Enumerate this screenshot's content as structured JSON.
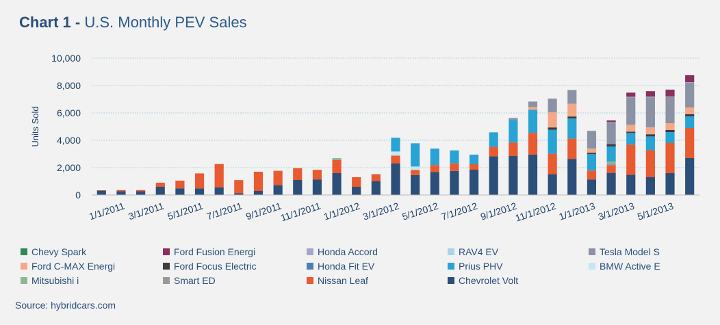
{
  "title": {
    "bold": "Chart 1 -",
    "rest": "U.S. Monthly PEV Sales"
  },
  "source": "Source: hybridcars.com",
  "chart_data": {
    "type": "bar",
    "stacked": true,
    "ylabel": "Units Sold",
    "ylim": [
      0,
      10000
    ],
    "yticks": [
      0,
      2000,
      4000,
      6000,
      8000,
      10000
    ],
    "ytick_labels": [
      "0",
      "2,000",
      "4,000",
      "6,000",
      "8,000",
      "10,000"
    ],
    "categories": [
      "12/1/2010",
      "1/1/2011",
      "2/1/2011",
      "3/1/2011",
      "4/1/2011",
      "5/1/2011",
      "6/1/2011",
      "7/1/2011",
      "8/1/2011",
      "9/1/2011",
      "10/1/2011",
      "11/1/2011",
      "12/1/2011",
      "1/1/2012",
      "2/1/2012",
      "3/1/2012",
      "4/1/2012",
      "5/1/2012",
      "6/1/2012",
      "7/1/2012",
      "8/1/2012",
      "9/1/2012",
      "10/1/2012",
      "11/1/2012",
      "12/1/2012",
      "1/1/2013",
      "2/1/2013",
      "3/1/2013",
      "4/1/2013",
      "5/1/2013",
      "6/1/2013"
    ],
    "xtick_labels": [
      "1/1/2011",
      "3/1/2011",
      "5/1/2011",
      "7/1/2011",
      "9/1/2011",
      "11/1/2011",
      "1/1/2012",
      "3/1/2012",
      "5/1/2012",
      "7/1/2012",
      "9/1/2012",
      "11/1/2012",
      "1/1/2013",
      "3/1/2013",
      "5/1/2013"
    ],
    "series": [
      {
        "name": "Chevrolet Volt",
        "color": "#2c4f7a",
        "values": [
          320,
          280,
          280,
          600,
          490,
          480,
          560,
          130,
          300,
          720,
          1100,
          1140,
          1600,
          600,
          1020,
          2300,
          1460,
          1680,
          1760,
          1850,
          2830,
          2850,
          2960,
          1520,
          2640,
          1140,
          1620,
          1480,
          1300,
          1600,
          2700
        ]
      },
      {
        "name": "Nissan Leaf",
        "color": "#e85a30",
        "values": [
          30,
          80,
          80,
          300,
          560,
          1100,
          1700,
          960,
          1400,
          1050,
          860,
          700,
          950,
          700,
          480,
          580,
          370,
          510,
          550,
          400,
          690,
          980,
          1580,
          1500,
          1480,
          650,
          530,
          2200,
          1980,
          2200,
          2200
        ]
      },
      {
        "name": "Smart ED",
        "color": "#999999",
        "values": [
          0,
          0,
          0,
          0,
          0,
          0,
          0,
          0,
          0,
          0,
          0,
          0,
          0,
          0,
          0,
          0,
          0,
          0,
          0,
          0,
          0,
          0,
          0,
          0,
          0,
          0,
          100,
          0,
          0,
          0,
          0
        ]
      },
      {
        "name": "Mitsubishi i",
        "color": "#8fb592",
        "values": [
          0,
          0,
          0,
          0,
          0,
          0,
          0,
          0,
          0,
          0,
          0,
          0,
          150,
          0,
          30,
          0,
          0,
          0,
          0,
          0,
          0,
          0,
          0,
          0,
          0,
          0,
          200,
          0,
          0,
          0,
          0
        ]
      },
      {
        "name": "BMW Active E",
        "color": "#c4e6f5",
        "values": [
          0,
          0,
          0,
          0,
          0,
          0,
          0,
          0,
          0,
          0,
          0,
          0,
          0,
          0,
          0,
          300,
          250,
          0,
          0,
          0,
          0,
          0,
          0,
          0,
          0,
          0,
          0,
          0,
          0,
          0,
          0
        ]
      },
      {
        "name": "Prius PHV",
        "color": "#29a3d3",
        "values": [
          0,
          0,
          0,
          0,
          0,
          0,
          0,
          0,
          0,
          0,
          0,
          0,
          0,
          0,
          0,
          1000,
          1700,
          1200,
          950,
          700,
          1060,
          1650,
          1690,
          1750,
          1470,
          1200,
          1100,
          850,
          1000,
          800,
          850
        ]
      },
      {
        "name": "Honda Fit EV",
        "color": "#4a7fb6",
        "values": [
          0,
          0,
          0,
          0,
          0,
          0,
          0,
          0,
          0,
          0,
          0,
          0,
          0,
          0,
          0,
          0,
          0,
          0,
          0,
          0,
          0,
          0,
          0,
          0,
          0,
          0,
          0,
          0,
          0,
          0,
          0
        ]
      },
      {
        "name": "Ford Focus Electric",
        "color": "#3d3d3d",
        "values": [
          0,
          0,
          0,
          0,
          0,
          0,
          0,
          0,
          0,
          0,
          0,
          0,
          0,
          0,
          0,
          0,
          0,
          0,
          0,
          0,
          0,
          0,
          0,
          170,
          150,
          100,
          150,
          100,
          160,
          150,
          150
        ]
      },
      {
        "name": "Ford C-MAX Energi",
        "color": "#f4a887",
        "values": [
          0,
          0,
          0,
          0,
          0,
          0,
          0,
          0,
          0,
          0,
          0,
          0,
          0,
          0,
          0,
          0,
          0,
          0,
          0,
          0,
          0,
          0,
          200,
          1100,
          930,
          300,
          0,
          500,
          500,
          500,
          500
        ]
      },
      {
        "name": "Tesla Model S",
        "color": "#8c92a6",
        "values": [
          0,
          0,
          0,
          0,
          0,
          0,
          0,
          0,
          0,
          0,
          0,
          0,
          0,
          0,
          0,
          0,
          0,
          0,
          0,
          0,
          0,
          150,
          400,
          1000,
          1000,
          1300,
          1650,
          2000,
          2200,
          1900,
          1800
        ]
      },
      {
        "name": "RAV4 EV",
        "color": "#a9d4ea",
        "values": [
          0,
          0,
          0,
          0,
          0,
          0,
          0,
          0,
          0,
          0,
          0,
          0,
          0,
          0,
          0,
          0,
          0,
          0,
          0,
          0,
          0,
          0,
          0,
          0,
          0,
          0,
          0,
          0,
          0,
          0,
          0
        ]
      },
      {
        "name": "Honda Accord",
        "color": "#a6a6c8",
        "values": [
          0,
          0,
          0,
          0,
          0,
          0,
          0,
          0,
          0,
          0,
          0,
          0,
          0,
          0,
          0,
          0,
          0,
          0,
          0,
          0,
          0,
          0,
          0,
          0,
          0,
          0,
          0,
          50,
          50,
          50,
          50
        ]
      },
      {
        "name": "Ford Fusion Energi",
        "color": "#8a2f5e",
        "values": [
          0,
          0,
          0,
          0,
          0,
          0,
          0,
          0,
          0,
          0,
          0,
          0,
          0,
          0,
          0,
          0,
          0,
          0,
          0,
          0,
          0,
          0,
          0,
          0,
          0,
          0,
          100,
          300,
          400,
          500,
          500
        ]
      },
      {
        "name": "Chevy Spark",
        "color": "#2f8a54",
        "values": [
          0,
          0,
          0,
          0,
          0,
          0,
          0,
          0,
          0,
          0,
          0,
          0,
          0,
          0,
          0,
          0,
          0,
          0,
          0,
          0,
          0,
          0,
          0,
          0,
          0,
          0,
          0,
          0,
          0,
          0,
          0
        ]
      }
    ],
    "legend": [
      {
        "name": "Chevy Spark",
        "color": "#2f8a54"
      },
      {
        "name": "Ford Fusion Energi",
        "color": "#8a2f5e"
      },
      {
        "name": "Honda Accord",
        "color": "#a6a6c8"
      },
      {
        "name": "RAV4 EV",
        "color": "#a9d4ea"
      },
      {
        "name": "Tesla Model S",
        "color": "#8c92a6"
      },
      {
        "name": "Ford C-MAX Energi",
        "color": "#f4a887"
      },
      {
        "name": "Ford Focus Electric",
        "color": "#3d3d3d"
      },
      {
        "name": "Honda Fit EV",
        "color": "#4a7fb6"
      },
      {
        "name": "Prius PHV",
        "color": "#29a3d3"
      },
      {
        "name": "BMW Active E",
        "color": "#c4e6f5"
      },
      {
        "name": "Mitsubishi i",
        "color": "#8fb592"
      },
      {
        "name": "Smart ED",
        "color": "#999999"
      },
      {
        "name": "Nissan Leaf",
        "color": "#e85a30"
      },
      {
        "name": "Chevrolet Volt",
        "color": "#2c4f7a"
      }
    ],
    "legend_position": "bottom"
  }
}
